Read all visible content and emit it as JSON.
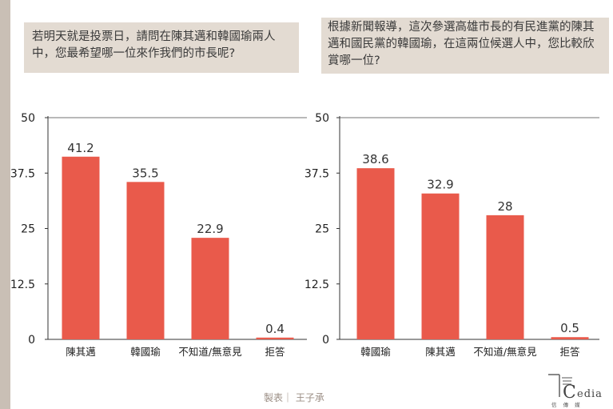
{
  "questions": {
    "left": "若明天就是投票日，請問在陳其邁和韓國瑜兩人中，您最希望哪一位來作我們的市長呢?",
    "right": "根據新聞報導，這次參選高雄市長的有民進黨的陳其邁和國民黨的韓國瑜，在這兩位候選人中，您比較欣賞哪一位?"
  },
  "chart_data": [
    {
      "type": "bar",
      "categories": [
        "陳其邁",
        "韓國瑜",
        "不知道/無意見",
        "拒答"
      ],
      "values": [
        41.2,
        35.5,
        22.9,
        0.4
      ],
      "value_labels": [
        "41.2",
        "35.5",
        "22.9",
        "0.4"
      ],
      "yticks": [
        "0",
        "12.5",
        "25",
        "37.5",
        "50"
      ],
      "ylim": [
        0,
        50
      ],
      "grid": false,
      "bar_color": "#e95a4b"
    },
    {
      "type": "bar",
      "categories": [
        "韓國瑜",
        "陳其邁",
        "不知道/無意見",
        "拒答"
      ],
      "values": [
        38.6,
        32.9,
        28,
        0.5
      ],
      "value_labels": [
        "38.6",
        "32.9",
        "28",
        "0.5"
      ],
      "yticks": [
        "0",
        "12.5",
        "25",
        "37.5",
        "50"
      ],
      "ylim": [
        0,
        50
      ],
      "grid": false,
      "bar_color": "#e95a4b"
    }
  ],
  "credit": "製表｜ 王子承",
  "logo": {
    "letter": "C",
    "wordmark": "edia",
    "tagline": "信 傳 媒"
  }
}
